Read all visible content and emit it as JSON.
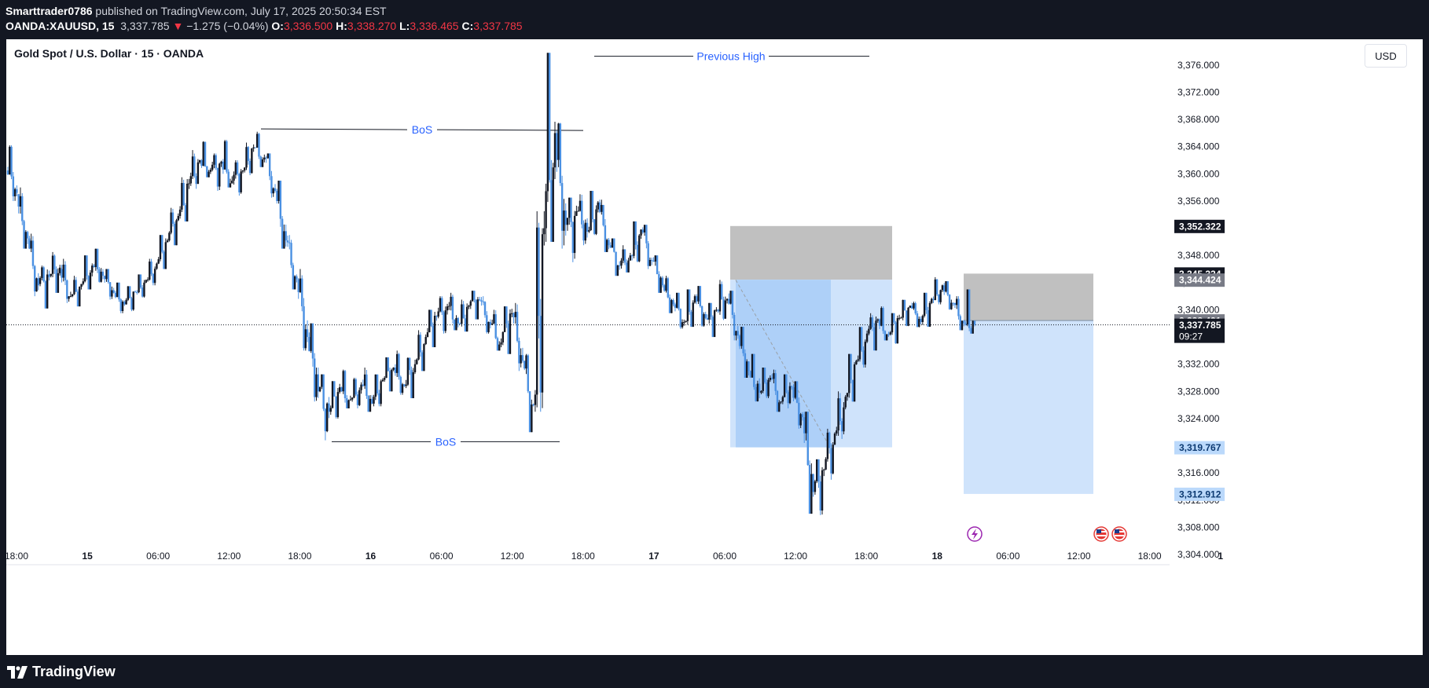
{
  "header": {
    "author": "Smarttrader0786",
    "published_text": " published on TradingView.com, July 17, 2025 20:50:34 EST",
    "symbol": "OANDA:XAUUSD, 15",
    "last_price": "3,337.785",
    "change_arrow": "▼",
    "change": "−1.275 (−0.04%)",
    "open_label": "O:",
    "open": "3,336.500",
    "high_label": "H:",
    "high": "3,338.270",
    "low_label": "L:",
    "low": "3,336.465",
    "close_label": "C:",
    "close": "3,337.785"
  },
  "chart_title": "Gold Spot / U.S. Dollar · 15 · OANDA",
  "currency": "USD",
  "footer": {
    "brand": "TradingView"
  },
  "chart_data": {
    "type": "candlestick",
    "title": "Gold Spot / U.S. Dollar · 15 · OANDA",
    "y_ticks": [
      "3,376.000",
      "3,372.000",
      "3,368.000",
      "3,364.000",
      "3,360.000",
      "3,356.000",
      "3,352.000",
      "3,348.000",
      "3,344.000",
      "3,340.000",
      "3,336.000",
      "3,332.000",
      "3,328.000",
      "3,324.000",
      "3,320.000",
      "3,316.000",
      "3,312.000",
      "3,308.000",
      "3,304.000"
    ],
    "y_range": [
      3302.5,
      3379.8
    ],
    "x_ticks": [
      {
        "label": "18:00",
        "bold": false
      },
      {
        "label": "15",
        "bold": true
      },
      {
        "label": "06:00",
        "bold": false
      },
      {
        "label": "12:00",
        "bold": false
      },
      {
        "label": "18:00",
        "bold": false
      },
      {
        "label": "16",
        "bold": true
      },
      {
        "label": "06:00",
        "bold": false
      },
      {
        "label": "12:00",
        "bold": false
      },
      {
        "label": "18:00",
        "bold": false
      },
      {
        "label": "17",
        "bold": true
      },
      {
        "label": "06:00",
        "bold": false
      },
      {
        "label": "12:00",
        "bold": false
      },
      {
        "label": "18:00",
        "bold": false
      },
      {
        "label": "18",
        "bold": true
      },
      {
        "label": "06:00",
        "bold": false
      },
      {
        "label": "12:00",
        "bold": false
      },
      {
        "label": "18:00",
        "bold": false
      },
      {
        "label": "1",
        "bold": true
      }
    ],
    "current_price": {
      "value": 3337.785,
      "label": "3,337.785",
      "countdown": "09:27"
    },
    "price_labels": [
      {
        "value": 3352.322,
        "label": "3,352.322",
        "color": "#131722"
      },
      {
        "value": 3345.324,
        "label": "3,345.324",
        "color": "#131722"
      },
      {
        "value": 3344.424,
        "label": "3,344.424",
        "color": "#787b86"
      },
      {
        "value": 3338.421,
        "label": "3,338.421",
        "color": "#787b86"
      },
      {
        "value": 3319.767,
        "label": "3,319.767",
        "color": "#bbd9fb"
      },
      {
        "value": 3312.912,
        "label": "3,312.912",
        "color": "#bbd9fb"
      }
    ],
    "annotations": [
      {
        "text": "Previous High",
        "price": 3377.3
      },
      {
        "text": "BoS",
        "price": 3366.5
      },
      {
        "text": "BoS",
        "price": 3320.6
      }
    ],
    "trade_zones": [
      {
        "name": "trade-1",
        "stop_top": 3352.322,
        "entry": 3344.424,
        "target": 3319.767
      },
      {
        "name": "trade-2",
        "stop_top": 3345.324,
        "entry": 3338.421,
        "target": 3312.912
      }
    ],
    "path_points": [
      [
        3360.5,
        3364.2,
        3356.0,
        3357.2
      ],
      [
        3357.0,
        3358.0,
        3349.0,
        3350.5
      ],
      [
        3350.5,
        3351.2,
        3342.0,
        3343.6
      ],
      [
        3343.8,
        3346.5,
        3340.2,
        3344.8
      ],
      [
        3345.0,
        3348.5,
        3342.5,
        3346.2
      ],
      [
        3346.0,
        3347.5,
        3341.0,
        3342.0
      ],
      [
        3342.0,
        3345.0,
        3340.5,
        3343.8
      ],
      [
        3343.8,
        3348.0,
        3343.0,
        3346.5
      ],
      [
        3346.5,
        3349.0,
        3344.0,
        3345.0
      ],
      [
        3345.0,
        3346.0,
        3341.5,
        3342.5
      ],
      [
        3342.5,
        3344.0,
        3339.5,
        3340.8
      ],
      [
        3340.8,
        3343.5,
        3339.8,
        3342.6
      ],
      [
        3342.6,
        3345.2,
        3341.8,
        3344.4
      ],
      [
        3344.4,
        3347.5,
        3343.6,
        3346.8
      ],
      [
        3346.8,
        3351.0,
        3346.0,
        3350.2
      ],
      [
        3350.2,
        3355.0,
        3349.5,
        3353.8
      ],
      [
        3353.8,
        3359.5,
        3353.0,
        3358.6
      ],
      [
        3358.6,
        3363.5,
        3357.8,
        3362.0
      ],
      [
        3362.0,
        3364.8,
        3359.5,
        3360.6
      ],
      [
        3360.6,
        3363.0,
        3357.5,
        3361.8
      ],
      [
        3361.8,
        3365.0,
        3358.0,
        3359.0
      ],
      [
        3359.0,
        3362.0,
        3356.8,
        3360.5
      ],
      [
        3360.5,
        3364.6,
        3359.8,
        3363.9
      ],
      [
        3363.9,
        3366.2,
        3361.0,
        3362.4
      ],
      [
        3362.4,
        3363.0,
        3356.5,
        3357.5
      ],
      [
        3357.5,
        3359.0,
        3349.0,
        3350.2
      ],
      [
        3350.2,
        3351.0,
        3343.0,
        3344.5
      ],
      [
        3344.5,
        3346.0,
        3334.0,
        3336.0
      ],
      [
        3336.0,
        3338.0,
        3326.5,
        3328.0
      ],
      [
        3328.0,
        3330.5,
        3320.8,
        3325.0
      ],
      [
        3325.0,
        3329.5,
        3324.0,
        3328.6
      ],
      [
        3328.6,
        3331.2,
        3325.5,
        3326.8
      ],
      [
        3326.8,
        3330.0,
        3325.5,
        3329.0
      ],
      [
        3329.0,
        3331.5,
        3325.0,
        3326.2
      ],
      [
        3326.2,
        3330.5,
        3325.8,
        3329.7
      ],
      [
        3329.7,
        3333.0,
        3328.0,
        3331.5
      ],
      [
        3331.5,
        3334.0,
        3327.5,
        3328.8
      ],
      [
        3328.8,
        3333.0,
        3327.0,
        3332.0
      ],
      [
        3332.0,
        3337.0,
        3331.0,
        3336.0
      ],
      [
        3336.0,
        3340.0,
        3334.5,
        3339.0
      ],
      [
        3339.0,
        3342.0,
        3336.5,
        3340.5
      ],
      [
        3340.5,
        3342.5,
        3337.0,
        3338.0
      ],
      [
        3338.0,
        3341.5,
        3336.8,
        3340.6
      ],
      [
        3340.6,
        3342.8,
        3338.6,
        3341.4
      ],
      [
        3341.4,
        3342.0,
        3336.5,
        3337.8
      ],
      [
        3337.8,
        3340.0,
        3334.0,
        3335.2
      ],
      [
        3335.2,
        3340.5,
        3333.5,
        3339.5
      ],
      [
        3339.5,
        3341.0,
        3331.0,
        3332.5
      ],
      [
        3332.5,
        3333.5,
        3322.0,
        3326.0
      ],
      [
        3326.0,
        3354.5,
        3325.0,
        3352.0
      ],
      [
        3352.0,
        3377.8,
        3350.0,
        3366.0
      ],
      [
        3366.0,
        3367.5,
        3349.0,
        3352.5
      ],
      [
        3352.5,
        3356.5,
        3347.0,
        3354.5
      ],
      [
        3354.5,
        3357.0,
        3349.5,
        3351.5
      ],
      [
        3351.5,
        3357.5,
        3351.0,
        3355.8
      ],
      [
        3355.8,
        3356.2,
        3348.5,
        3349.5
      ],
      [
        3349.5,
        3350.5,
        3345.0,
        3346.5
      ],
      [
        3346.5,
        3349.5,
        3345.5,
        3348.0
      ],
      [
        3348.0,
        3353.0,
        3347.0,
        3351.8
      ],
      [
        3351.8,
        3352.5,
        3346.0,
        3347.2
      ],
      [
        3347.2,
        3348.0,
        3342.5,
        3343.6
      ],
      [
        3343.6,
        3345.0,
        3339.5,
        3340.8
      ],
      [
        3340.8,
        3342.5,
        3337.2,
        3338.2
      ],
      [
        3338.2,
        3343.0,
        3337.5,
        3342.0
      ],
      [
        3342.0,
        3343.5,
        3337.5,
        3338.8
      ],
      [
        3338.8,
        3341.0,
        3336.0,
        3340.0
      ],
      [
        3340.0,
        3344.4,
        3338.5,
        3341.6
      ],
      [
        3341.6,
        3342.8,
        3335.5,
        3336.2
      ],
      [
        3336.2,
        3337.5,
        3330.0,
        3331.0
      ],
      [
        3331.0,
        3333.5,
        3326.5,
        3327.8
      ],
      [
        3327.8,
        3331.5,
        3327.0,
        3330.0
      ],
      [
        3330.0,
        3331.2,
        3325.0,
        3326.5
      ],
      [
        3326.5,
        3330.5,
        3325.5,
        3328.6
      ],
      [
        3328.6,
        3329.5,
        3322.5,
        3324.2
      ],
      [
        3324.2,
        3325.0,
        3310.0,
        3313.2
      ],
      [
        3313.2,
        3318.0,
        3309.8,
        3316.5
      ],
      [
        3316.5,
        3322.5,
        3315.0,
        3321.8
      ],
      [
        3321.8,
        3328.0,
        3321.0,
        3327.2
      ],
      [
        3327.2,
        3333.5,
        3326.5,
        3332.5
      ],
      [
        3332.5,
        3337.5,
        3331.5,
        3336.5
      ],
      [
        3336.5,
        3339.5,
        3334.0,
        3338.6
      ],
      [
        3338.6,
        3340.5,
        3335.5,
        3336.4
      ],
      [
        3336.4,
        3339.5,
        3335.0,
        3338.8
      ],
      [
        3338.8,
        3341.5,
        3337.6,
        3340.6
      ],
      [
        3340.6,
        3341.2,
        3337.4,
        3338.2
      ],
      [
        3338.2,
        3342.5,
        3337.5,
        3341.6
      ],
      [
        3341.6,
        3344.8,
        3340.8,
        3343.6
      ],
      [
        3343.6,
        3344.2,
        3340.0,
        3341.0
      ],
      [
        3341.0,
        3342.0,
        3337.0,
        3338.0
      ],
      [
        3338.0,
        3343.0,
        3336.5,
        3337.8
      ]
    ]
  }
}
